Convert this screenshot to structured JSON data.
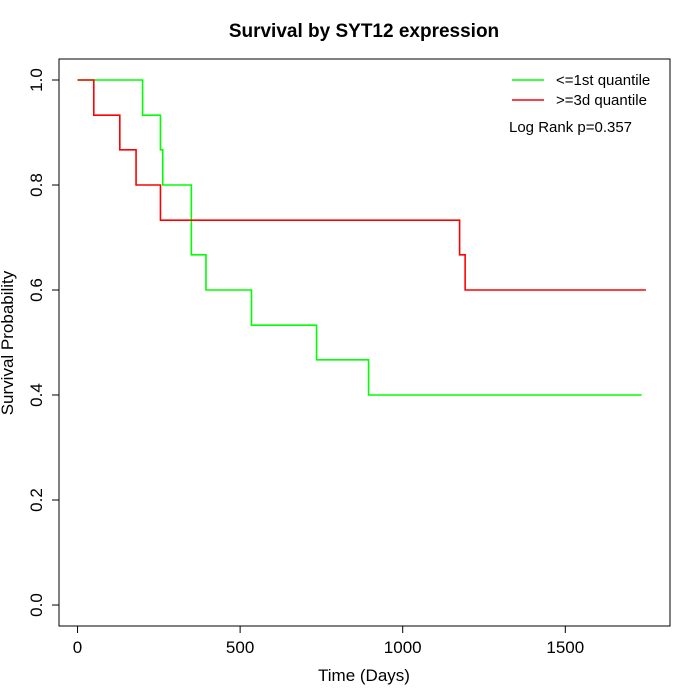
{
  "chart_data": {
    "type": "line",
    "title": "Survival by SYT12 expression",
    "xlabel": "Time (Days)",
    "ylabel": "Survival Probability",
    "xlim": [
      -57,
      1822
    ],
    "ylim": [
      -0.04,
      1.04
    ],
    "xticks": [
      0,
      500,
      1000,
      1500
    ],
    "xtick_labels": [
      "0",
      "500",
      "1000",
      "1500"
    ],
    "yticks": [
      0.0,
      0.2,
      0.4,
      0.6,
      0.8,
      1.0
    ],
    "ytick_labels": [
      "0.0",
      "0.2",
      "0.4",
      "0.6",
      "0.8",
      "1.0"
    ],
    "grid": false,
    "legend_position": "top-right",
    "annotation": "Log Rank p=0.357",
    "series": [
      {
        "name": "<=1st quantile",
        "color": "#00ff00",
        "step": true,
        "x": [
          0,
          200,
          255,
          262,
          340,
          350,
          395,
          535,
          735,
          895,
          1735
        ],
        "y": [
          1.0,
          0.933,
          0.867,
          0.8,
          0.8,
          0.667,
          0.6,
          0.533,
          0.467,
          0.4,
          0.4
        ]
      },
      {
        "name": ">=3d quantile",
        "color": "#ff0000",
        "step": true,
        "x": [
          0,
          50,
          130,
          180,
          255,
          1175,
          1192,
          1748
        ],
        "y": [
          1.0,
          0.933,
          0.867,
          0.8,
          0.733,
          0.667,
          0.6,
          0.6
        ]
      }
    ]
  }
}
